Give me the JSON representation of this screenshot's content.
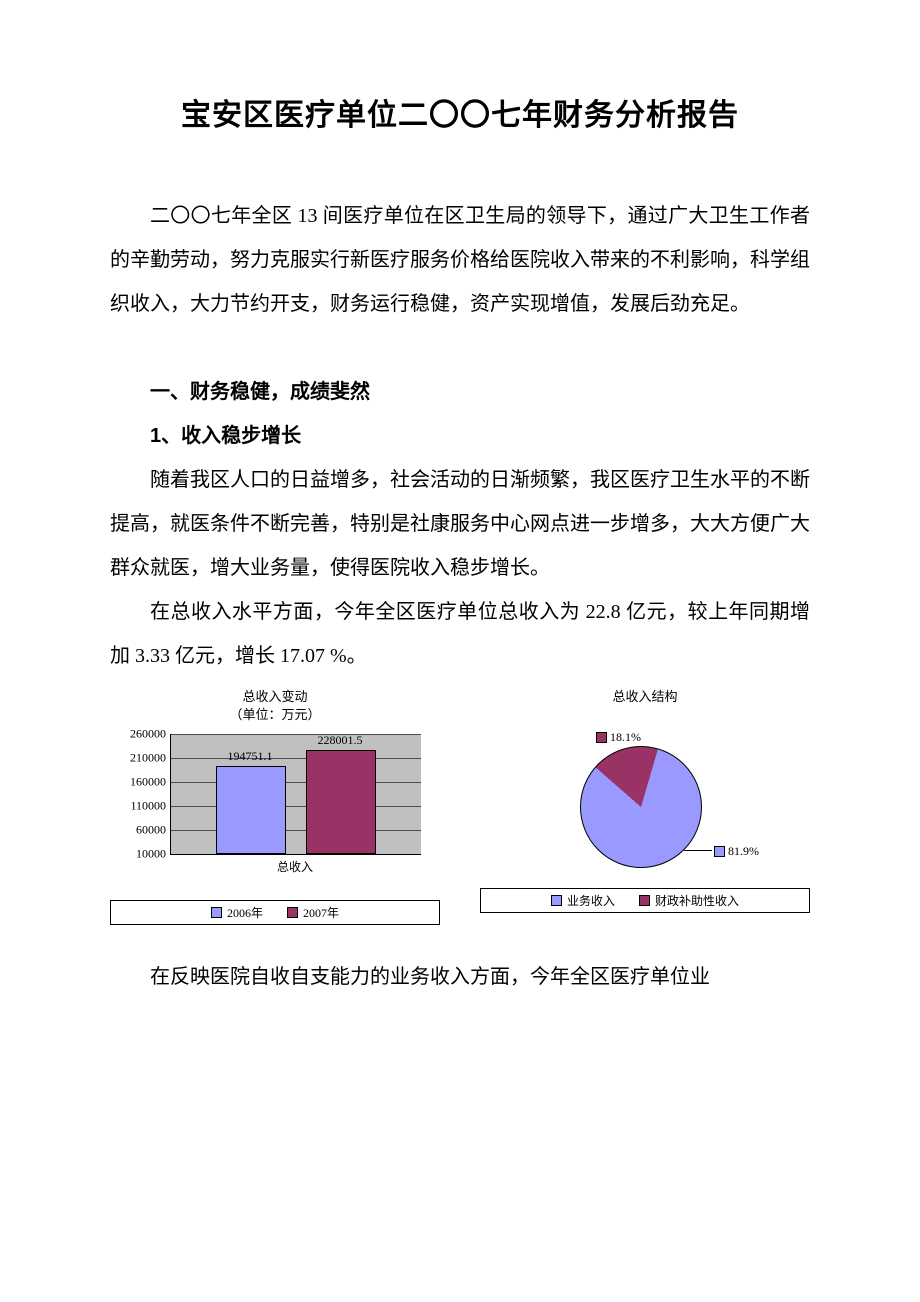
{
  "title": "宝安区医疗单位二〇〇七年财务分析报告",
  "para1": "二〇〇七年全区 13 间医疗单位在区卫生局的领导下，通过广大卫生工作者的辛勤劳动，努力克服实行新医疗服务价格给医院收入带来的不利影响，科学组织收入，大力节约开支，财务运行稳健，资产实现增值，发展后劲充足。",
  "section1_head": "一、财务稳健，成绩斐然",
  "section1_sub1": "1、收入稳步增长",
  "para2": "随着我区人口的日益增多，社会活动的日渐频繁，我区医疗卫生水平的不断提高，就医条件不断完善，特别是社康服务中心网点进一步增多，大大方便广大群众就医，增大业务量，使得医院收入稳步增长。",
  "para3": "在总收入水平方面，今年全区医疗单位总收入为 22.8 亿元，较上年同期增加 3.33 亿元，增长 17.07 %。",
  "para4": "在反映医院自收自支能力的业务收入方面，今年全区医疗单位业",
  "bar_chart": {
    "title_line1": "总收入变动",
    "title_line2": "（单位：万元）",
    "categories": [
      "总收入"
    ],
    "series": [
      {
        "name": "2006年",
        "value": 194751.1,
        "label": "194751.1",
        "color": "#9999ff"
      },
      {
        "name": "2007年",
        "value": 228001.5,
        "label": "228001.5",
        "color": "#993366"
      }
    ],
    "ymin": 10000,
    "ymax": 260000,
    "ytick_step": 50000,
    "yticks": [
      "10000",
      "60000",
      "110000",
      "160000",
      "210000",
      "260000"
    ],
    "plot_bg": "#c0c0c0",
    "x_label": "总收入",
    "legend": [
      {
        "label": "2006年",
        "color": "#9999ff"
      },
      {
        "label": "2007年",
        "color": "#993366"
      }
    ]
  },
  "pie_chart": {
    "title": "总收入结构",
    "slices": [
      {
        "name": "业务收入",
        "pct": 81.9,
        "label": "81.9%",
        "color": "#9999ff"
      },
      {
        "name": "财政补助性收入",
        "pct": 18.1,
        "label": "18.1%",
        "color": "#993366"
      }
    ],
    "legend": [
      {
        "label": "业务收入",
        "color": "#9999ff"
      },
      {
        "label": "财政补助性收入",
        "color": "#993366"
      }
    ]
  }
}
